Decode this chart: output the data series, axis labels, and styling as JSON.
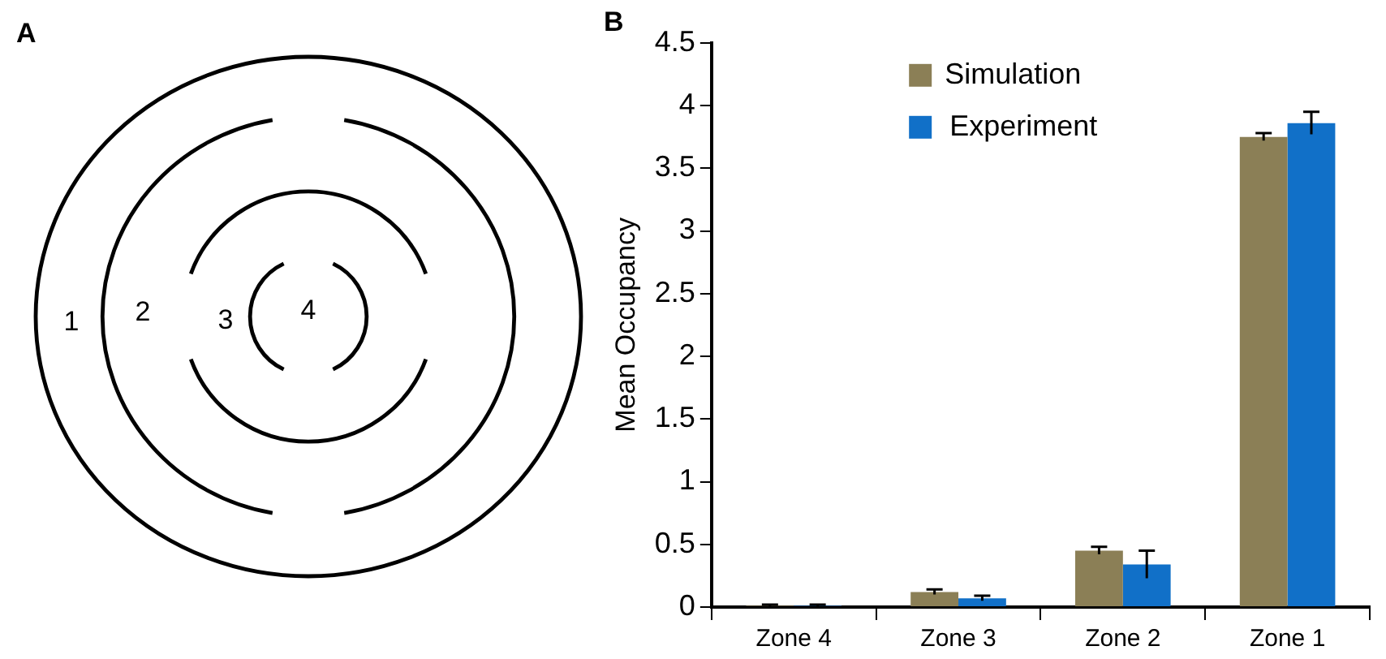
{
  "chart_data": [
    {
      "type": "other",
      "title": "A",
      "annotations": [
        "1",
        "2",
        "3",
        "4"
      ]
    },
    {
      "type": "bar",
      "title": "B",
      "ylabel": "Mean Occupancy",
      "categories": [
        "Zone 4",
        "Zone 3",
        "Zone 2",
        "Zone 1"
      ],
      "series": [
        {
          "name": "Simulation",
          "color": "#8b7f56",
          "values": [
            0.01,
            0.12,
            0.45,
            3.75
          ],
          "errors": [
            0.01,
            0.02,
            0.03,
            0.03
          ]
        },
        {
          "name": "Experiment",
          "color": "#1170c8",
          "values": [
            0.01,
            0.07,
            0.34,
            3.86
          ],
          "errors": [
            0.01,
            0.02,
            0.11,
            0.09
          ]
        }
      ],
      "ylim": [
        0,
        4.5
      ],
      "yticks": [
        0,
        0.5,
        1,
        1.5,
        2,
        2.5,
        3,
        3.5,
        4,
        4.5
      ],
      "grid": false,
      "legend": "top"
    }
  ]
}
